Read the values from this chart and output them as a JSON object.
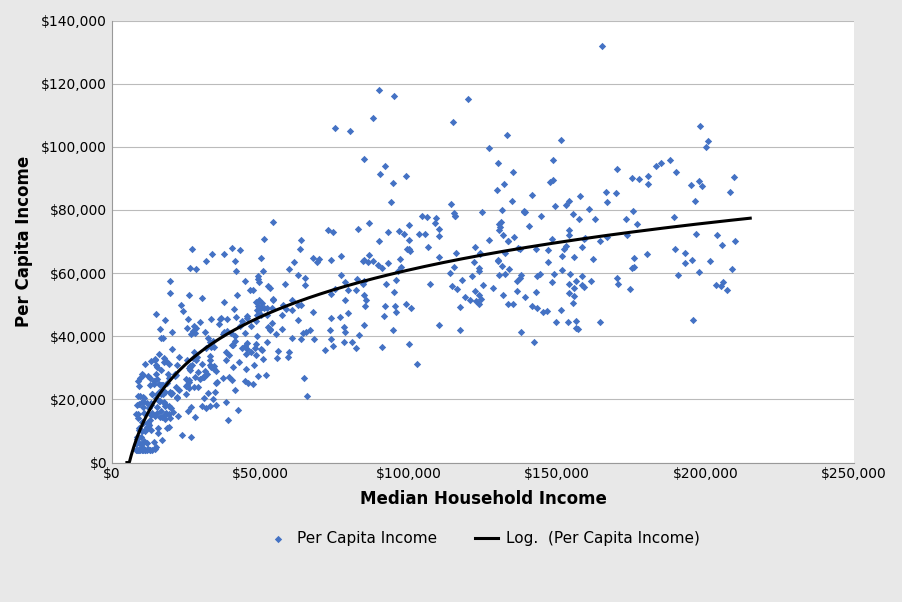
{
  "title": "",
  "xlabel": "Median Household Income",
  "ylabel": "Per Capita Income",
  "xlim": [
    0,
    250000
  ],
  "ylim": [
    0,
    140000
  ],
  "xticks": [
    0,
    50000,
    100000,
    150000,
    200000,
    250000
  ],
  "yticks": [
    0,
    20000,
    40000,
    60000,
    80000,
    100000,
    120000,
    140000
  ],
  "xtick_labels": [
    "$0",
    "$50,000",
    "$100,000",
    "$150,000",
    "$200,000",
    "$250,000"
  ],
  "ytick_labels": [
    "$0",
    "$20,000",
    "$40,000",
    "$60,000",
    "$80,000",
    "$100,000",
    "$120,000",
    "$140,000"
  ],
  "scatter_color": "#4472C4",
  "scatter_marker": "D",
  "scatter_size": 14,
  "log_color": "#000000",
  "log_linewidth": 2.2,
  "legend_scatter_label": "Per Capita Income",
  "legend_log_label": "Log.  (Per Capita Income)",
  "background_color": "#E8E8E8",
  "plot_bg_color": "#FFFFFF",
  "grid_color": "#BBBBBB",
  "seed": 42,
  "n_points": 600
}
